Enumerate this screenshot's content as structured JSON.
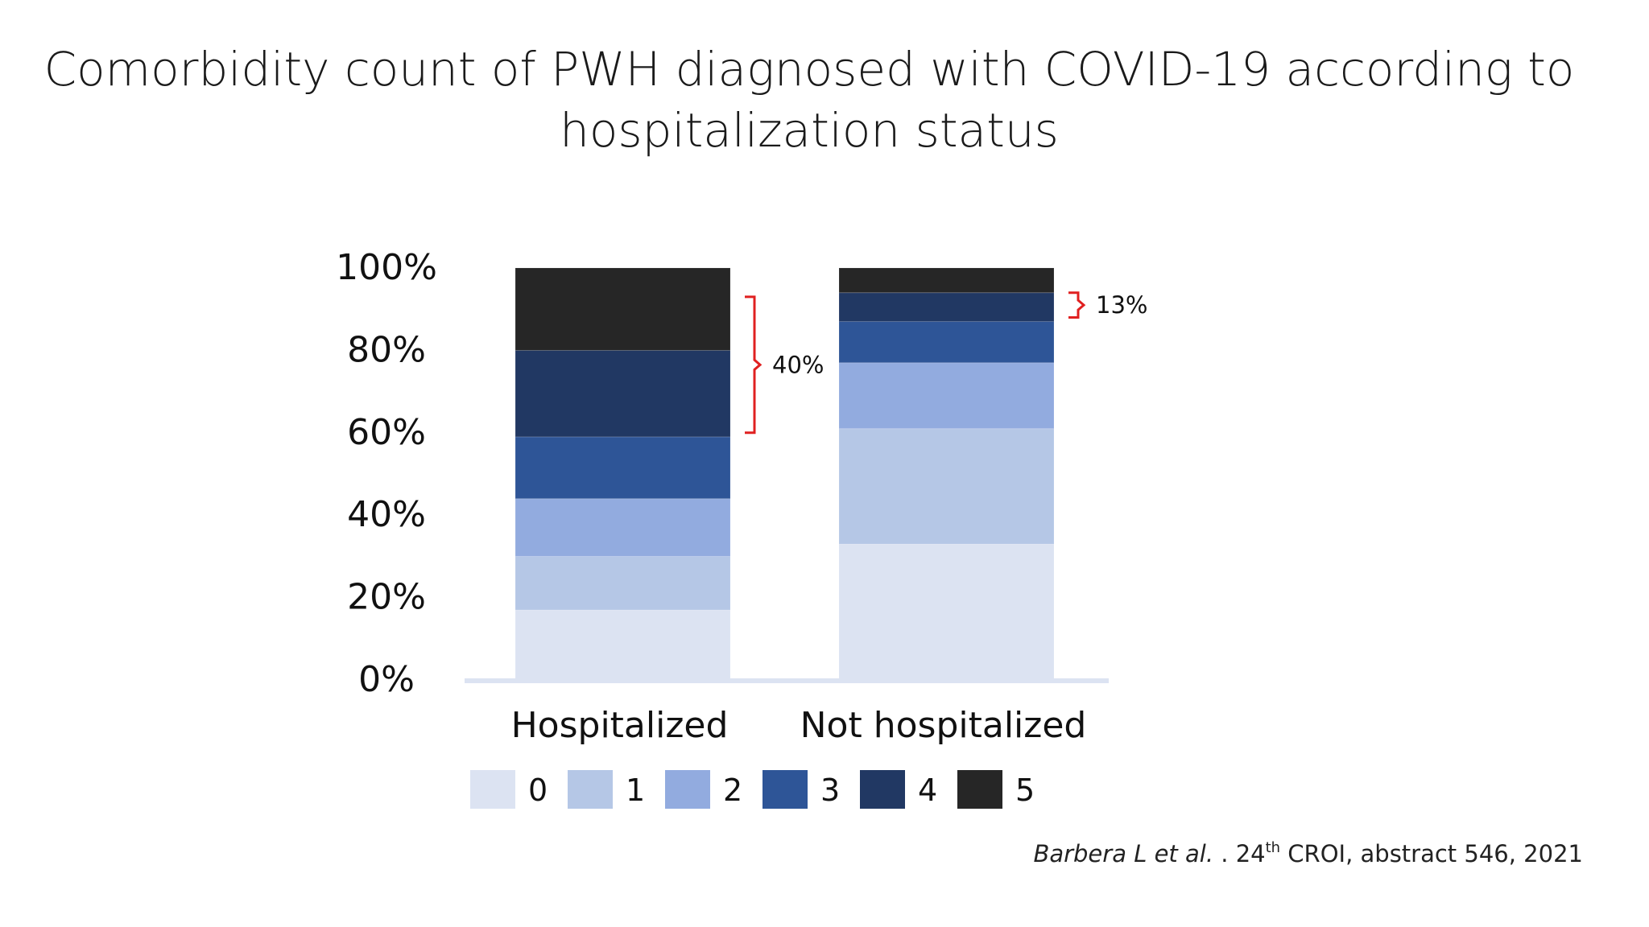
{
  "slide": {
    "title_line1": "Comorbidity count of PWH diagnosed with COVID-19 according to",
    "title_line2": "hospitalization status",
    "citation": {
      "authors": "Barbera L et al.",
      "sep": " . 24",
      "sup": "th",
      "rest": " CROI, abstract  546, 2021"
    }
  },
  "chart_data": {
    "type": "bar",
    "stacked": true,
    "categories": [
      "Hospitalized",
      "Not hospitalized"
    ],
    "ylim": [
      0,
      100
    ],
    "yticks": [
      "0%",
      "20%",
      "40%",
      "60%",
      "80%",
      "100%"
    ],
    "ytick_values": [
      0,
      20,
      40,
      60,
      80,
      100
    ],
    "series": [
      {
        "name": "0",
        "color": "#dce3f2",
        "values": [
          17,
          33
        ]
      },
      {
        "name": "1",
        "color": "#b5c7e6",
        "values": [
          13,
          28
        ]
      },
      {
        "name": "2",
        "color": "#92abdf",
        "values": [
          14,
          16
        ]
      },
      {
        "name": "3",
        "color": "#2e5597",
        "values": [
          15,
          10
        ]
      },
      {
        "name": "4",
        "color": "#213863",
        "values": [
          21,
          7
        ]
      },
      {
        "name": "5",
        "color": "#262626",
        "values": [
          20,
          6
        ]
      }
    ],
    "annotations": [
      {
        "category": "Hospitalized",
        "from": 60,
        "to": 93,
        "text": "40%"
      },
      {
        "category": "Not hospitalized",
        "from": 88,
        "to": 94,
        "text": "13%"
      }
    ],
    "legend_position": "bottom",
    "grid": false
  }
}
